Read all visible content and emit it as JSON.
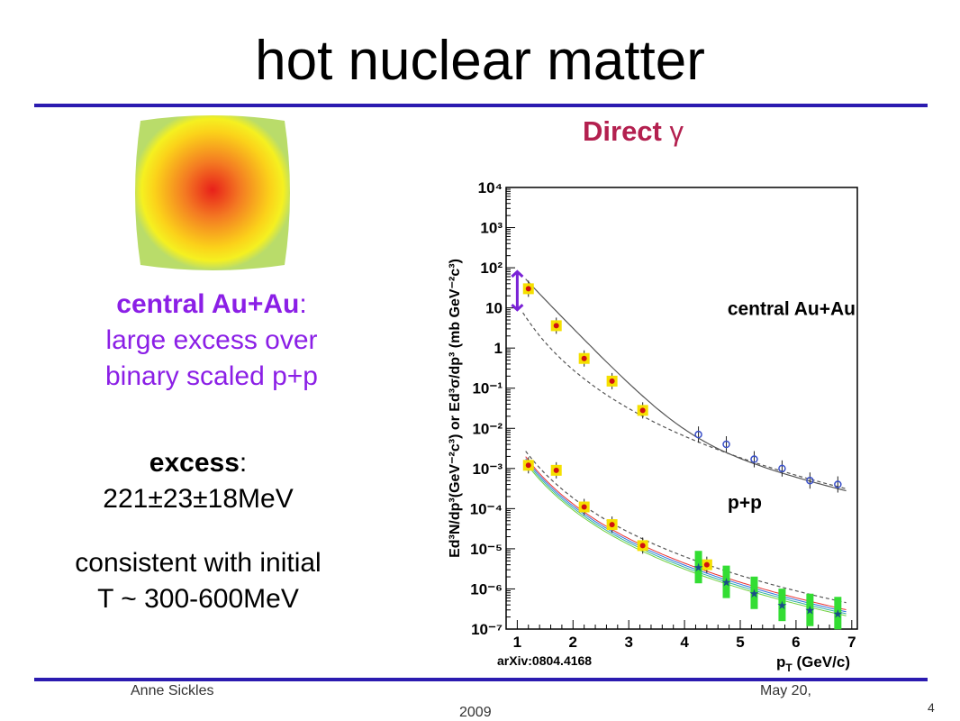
{
  "slide": {
    "title": "hot nuclear matter",
    "plot_heading": "Direct",
    "plot_heading_symbol": "γ",
    "left": {
      "aa_label": "central Au+Au",
      "aa_colon": ":",
      "aa_line2": "large excess over",
      "aa_line3": "binary scaled p+p",
      "excess_label": "excess",
      "excess_colon": ":",
      "excess_value": "221±23±18MeV",
      "consistent_line1": "consistent with initial",
      "consistent_line2": "T ~ 300-600MeV"
    },
    "footer": {
      "author": "Anne Sickles",
      "date_line1": "May 20,",
      "date_line2": "2009",
      "page": "4"
    },
    "colors": {
      "rule": "#2b1bb0",
      "heading": "#b3204f",
      "purple_text": "#8b1fe6",
      "arrow": "#7a22d6"
    }
  },
  "chart_data": {
    "type": "scatter",
    "xlabel": "p",
    "xlabel_sub": "T",
    "xlabel_unit": "(GeV/c)",
    "ylabel": "Ed³N/dp³(GeV⁻²c³) or Ed³σ/dp³ (mb GeV⁻²c³)",
    "xlim": [
      0.8,
      7.1
    ],
    "ylog": true,
    "ylim": [
      1e-07,
      10000.0
    ],
    "xticks": [
      "1",
      "2",
      "3",
      "4",
      "5",
      "6",
      "7"
    ],
    "yticks": [
      "10⁴",
      "10³",
      "10²",
      "10",
      "1",
      "10⁻¹",
      "10⁻²",
      "10⁻³",
      "10⁻⁴",
      "10⁻⁵",
      "10⁻⁶",
      "10⁻⁷"
    ],
    "annotations": [
      "central Au+Au",
      "p+p",
      "arXiv:0804.4168"
    ],
    "series": [
      {
        "x": [
          1.2,
          1.7,
          2.2,
          2.7,
          3.25
        ],
        "y": [
          30,
          3.6,
          0.55,
          0.15,
          0.028
        ]
      },
      {
        "x": [
          4.25,
          4.75,
          5.25,
          5.75,
          6.25,
          6.75
        ],
        "y": [
          0.007,
          0.004,
          0.0017,
          0.001,
          0.0005,
          0.0004
        ]
      },
      {
        "x": [
          1.2,
          1.7,
          2.2,
          2.7,
          3.25,
          4.4
        ],
        "y": [
          0.0012,
          0.0009,
          0.00011,
          4e-05,
          1.2e-05,
          4e-06
        ]
      },
      {
        "x": [
          4.25,
          4.75,
          5.25,
          5.75,
          6.25,
          6.75
        ],
        "y": [
          3.5e-06,
          1.5e-06,
          8e-07,
          4e-07,
          3e-07,
          2.5e-07
        ]
      }
    ]
  }
}
